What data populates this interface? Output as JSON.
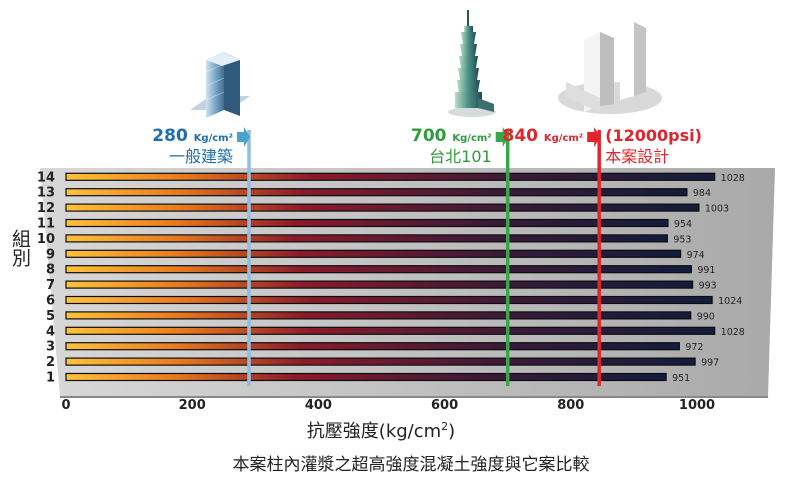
{
  "chart_data": {
    "type": "bar",
    "orientation": "horizontal",
    "categories": [
      "1",
      "2",
      "3",
      "4",
      "5",
      "6",
      "7",
      "8",
      "9",
      "10",
      "11",
      "12",
      "13",
      "14"
    ],
    "values": [
      951,
      997,
      972,
      1028,
      990,
      1024,
      993,
      991,
      974,
      953,
      954,
      1003,
      984,
      1028
    ],
    "ylabel": "組別",
    "xlabel_main": "抗壓強度(kg/cm",
    "xlabel_sup": "2",
    "xlabel_close": ")",
    "caption": "本案柱內灌漿之超高強度混凝土強度與它案比較",
    "xlim": [
      0,
      1100
    ],
    "xticks": [
      0,
      200,
      400,
      600,
      800,
      1000
    ],
    "grid": false,
    "reference_lines": [
      {
        "value": 290,
        "strength": "280",
        "unit": "Kg/cm²",
        "extra": "",
        "name": "一般建築",
        "color": "#1f6fb0",
        "line_color": "#8fbfdc",
        "arrow_color": "#4aa3c8",
        "icon": "glass-tower-icon"
      },
      {
        "value": 700,
        "strength": "700",
        "unit": "Kg/cm²",
        "extra": "",
        "name": "台北101",
        "color": "#2e9c3c",
        "line_color": "#3aa64a",
        "arrow_color": "#3aa64a",
        "icon": "taipei-101-icon"
      },
      {
        "value": 845,
        "strength": "840",
        "unit": "Kg/cm²",
        "extra": "(12000psi)",
        "name": "本案設計",
        "color": "#e0262c",
        "line_color": "#e0262c",
        "arrow_color": "#e0262c",
        "icon": "twin-towers-icon"
      }
    ],
    "colors": {
      "bar_start": "#ffc23a",
      "bar_mid": "#8a1a2a",
      "bar_end": "#121c3c",
      "label": "#222222"
    }
  }
}
